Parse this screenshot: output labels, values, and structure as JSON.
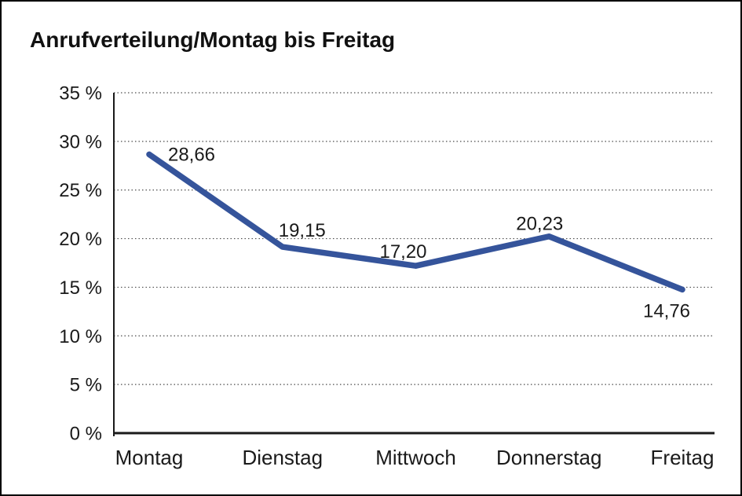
{
  "window": {
    "background_color": "#ffffff",
    "border_color": "#000000"
  },
  "chart_data": {
    "type": "line",
    "title": "Anrufverteilung/Montag bis Freitag",
    "categories": [
      "Montag",
      "Dienstag",
      "Mittwoch",
      "Donnerstag",
      "Freitag"
    ],
    "series": [
      {
        "values": [
          28.66,
          19.15,
          17.2,
          20.23,
          14.76
        ],
        "value_labels": [
          "28,66",
          "19,15",
          "17,20",
          "20,23",
          "14,76"
        ],
        "color": "#35549B"
      }
    ],
    "xlabel": "",
    "ylabel": "",
    "ylim": [
      0,
      35
    ],
    "yticks": [
      0,
      5,
      10,
      15,
      20,
      25,
      30,
      35
    ],
    "ytick_labels": [
      "0 %",
      "5 %",
      "10 %",
      "15 %",
      "20 %",
      "25 %",
      "30 %",
      "35 %"
    ],
    "grid": "horizontal-dotted",
    "legend": "none",
    "axis_color": "#1a1a1a",
    "gridline_color": "#4d4d4d",
    "text_color": "#1a1a1a"
  }
}
